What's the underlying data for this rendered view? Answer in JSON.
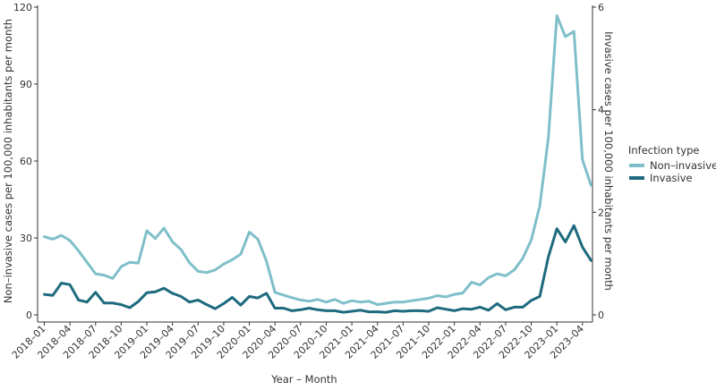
{
  "chart_data": {
    "type": "line",
    "xlabel": "Year – Month",
    "ylabel_left": "Non–invasive cases per 100,000 inhabitants per month",
    "ylabel_right": "Invasive cases per 100,000 inhabitants per month",
    "left_axis": {
      "range": [
        0,
        120
      ],
      "ticks": [
        0,
        30,
        60,
        90,
        120
      ]
    },
    "right_axis": {
      "range": [
        0,
        6
      ],
      "ticks": [
        0,
        2,
        4,
        6
      ]
    },
    "x_tick_labels": [
      "2018–01",
      "2018–04",
      "2018–07",
      "2018–10",
      "2019–01",
      "2019–04",
      "2019–07",
      "2019–10",
      "2020–01",
      "2020–04",
      "2020–07",
      "2020–10",
      "2021–01",
      "2021–04",
      "2021–07",
      "2021–10",
      "2022–01",
      "2022–04",
      "2022–07",
      "2022–10",
      "2023–01",
      "2023–04"
    ],
    "legend": {
      "title": "Infection type",
      "position": "right"
    },
    "grid": false,
    "series": [
      {
        "name": "Non–invasive",
        "axis": "left",
        "color": "#7fbfc9",
        "values": [
          30.5,
          29.5,
          31,
          29,
          25,
          20.5,
          16,
          15.5,
          14.2,
          18.8,
          20.5,
          20.2,
          32.8,
          29.8,
          33.8,
          28.5,
          25.5,
          20.3,
          17,
          16.5,
          17.5,
          19.8,
          21.5,
          23.7,
          32.3,
          29.5,
          21,
          8.8,
          7.7,
          6.7,
          5.8,
          5.3,
          6,
          5,
          6,
          4.5,
          5.5,
          5,
          5.3,
          4,
          4.5,
          5,
          5,
          5.5,
          6,
          6.5,
          7.5,
          7,
          8,
          8.5,
          12.7,
          11.7,
          14.5,
          16,
          15.2,
          17.5,
          22,
          29.2,
          42.5,
          69,
          116.7,
          108.5,
          110.5,
          60.5,
          50.5
        ]
      },
      {
        "name": "Invasive",
        "axis": "right",
        "color": "#1e6a7e",
        "values": [
          0.4,
          0.38,
          0.62,
          0.59,
          0.29,
          0.25,
          0.44,
          0.23,
          0.23,
          0.2,
          0.14,
          0.26,
          0.43,
          0.45,
          0.52,
          0.42,
          0.36,
          0.25,
          0.29,
          0.2,
          0.12,
          0.22,
          0.34,
          0.19,
          0.36,
          0.33,
          0.42,
          0.13,
          0.13,
          0.08,
          0.1,
          0.13,
          0.1,
          0.08,
          0.08,
          0.05,
          0.07,
          0.09,
          0.06,
          0.06,
          0.05,
          0.08,
          0.07,
          0.08,
          0.08,
          0.07,
          0.14,
          0.11,
          0.08,
          0.12,
          0.11,
          0.15,
          0.09,
          0.22,
          0.1,
          0.15,
          0.15,
          0.28,
          0.36,
          1.13,
          1.68,
          1.42,
          1.74,
          1.32,
          1.06
        ]
      }
    ]
  }
}
